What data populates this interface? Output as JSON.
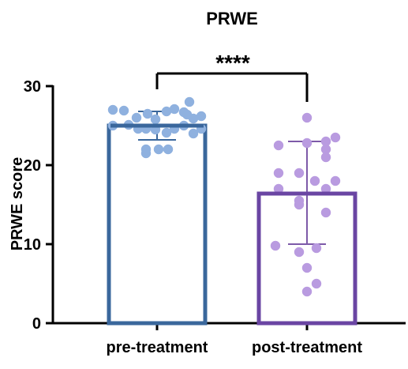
{
  "chart_data": {
    "type": "bar",
    "title": "PRWE",
    "ylabel": "PRWE score",
    "xlabel": "",
    "ylim": [
      0,
      30
    ],
    "yticks": [
      0,
      10,
      20,
      30
    ],
    "grid": false,
    "categories": [
      "pre-treatment",
      "post-treatment"
    ],
    "series": [
      {
        "category": "pre-treatment",
        "mean": 25,
        "sd_lower": 23.2,
        "sd_upper": 26.8,
        "points": [
          27,
          26.9,
          26,
          26.5,
          25.8,
          26.8,
          27.1,
          26.7,
          25.9,
          26.2,
          28,
          26.4,
          25,
          25.1,
          24.6,
          24.6,
          24.5,
          24.1,
          24.6,
          25,
          24,
          24.6,
          22,
          21.5,
          22,
          22
        ]
      },
      {
        "category": "post-treatment",
        "mean": 16.4,
        "sd_lower": 10,
        "sd_upper": 23,
        "points": [
          26,
          22.5,
          22.8,
          23,
          23.5,
          22,
          21,
          19,
          19,
          17,
          17,
          18,
          18,
          15,
          15.5,
          14,
          9.5,
          9.8,
          9,
          7,
          5,
          4
        ]
      }
    ],
    "significance": {
      "between": [
        "pre-treatment",
        "post-treatment"
      ],
      "label": "****"
    },
    "colors": {
      "pre_bar": "#3a679c",
      "pre_points": "#8fb1df",
      "post_bar": "#6a45a3",
      "post_points": "#b99be0",
      "post_error": "#7d5aa8",
      "axis": "#000000"
    }
  }
}
